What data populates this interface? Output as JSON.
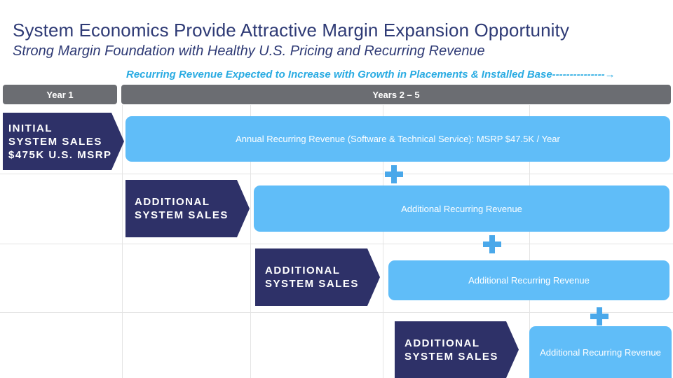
{
  "title": "System Economics Provide Attractive Margin Expansion Opportunity",
  "subtitle": "Strong Margin Foundation with Healthy U.S. Pricing and Recurring Revenue",
  "banner": "Recurring Revenue Expected to Increase with Growth in Placements & Installed Base---------------→",
  "headers": {
    "year1": "Year 1",
    "years2_5": "Years 2 – 5"
  },
  "rows": [
    {
      "sales": "INITIAL\nSYSTEM SALES\n$475K U.S. MSRP",
      "revenue": "Annual Recurring Revenue (Software & Technical Service): MSRP $47.5K / Year"
    },
    {
      "sales": "ADDITIONAL\nSYSTEM SALES",
      "revenue": "Additional Recurring Revenue"
    },
    {
      "sales": "ADDITIONAL\nSYSTEM SALES",
      "revenue": "Additional Recurring Revenue"
    },
    {
      "sales": "ADDITIONAL\nSYSTEM SALES",
      "revenue": "Additional Recurring Revenue"
    }
  ],
  "colors": {
    "title": "#2e3a75",
    "banner": "#29abe2",
    "header_bg": "#6b6d72",
    "sales_bg": "#2e3168",
    "revenue_bg": "#60bdf8",
    "plus": "#4aa8ea"
  },
  "icons": [
    "plus-icon",
    "plus-icon",
    "plus-icon"
  ]
}
